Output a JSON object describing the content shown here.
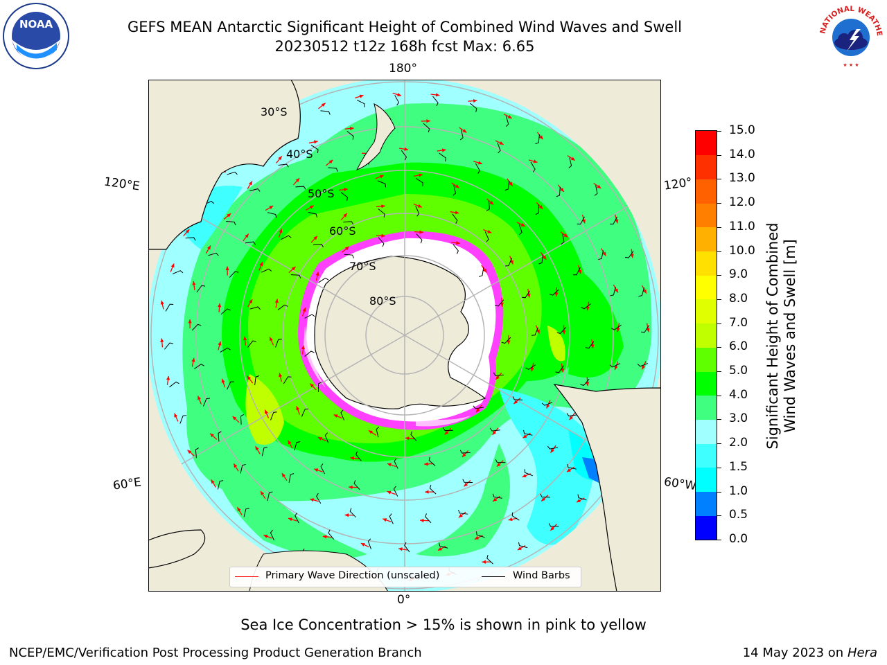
{
  "header": {
    "title_line1": "GEFS MEAN Antarctic Significant Height of Combined Wind Waves and Swell",
    "title_line2": "20230512 t12z 168h fcst   Max: 6.65"
  },
  "logos": {
    "left": "noaa-logo",
    "right": "nws-logo",
    "nws_text": "NATIONAL WEATHER SERVICE"
  },
  "map": {
    "projection": "south-polar-stereographic",
    "longitude_labels": {
      "top": "180°",
      "left_upper": "120°E",
      "right_upper": "120°",
      "left_lower": "60°E",
      "right_lower": "60°W",
      "bottom": "0°"
    },
    "latitude_labels": [
      "30°S",
      "40°S",
      "50°S",
      "60°S",
      "70°S",
      "80°S"
    ],
    "colors": {
      "land": "#efebd9",
      "ice": "#ffffff",
      "sea_ice_edge": "#ff40ff",
      "wave_arrow": "#ff0000",
      "wind_barb": "#000000",
      "graticule": "#b4b4b4"
    }
  },
  "legend": {
    "primary_wave_direction": "Primary Wave Direction (unscaled)",
    "wind_barbs": "Wind Barbs"
  },
  "colorbar": {
    "title_line1": "Significant Height of Combined",
    "title_line2": "Wind Waves and Swell [m]",
    "ticks": [
      "15.0",
      "14.0",
      "13.0",
      "12.0",
      "11.0",
      "10.0",
      "9.0",
      "8.0",
      "7.0",
      "6.0",
      "5.0",
      "4.0",
      "3.0",
      "2.0",
      "1.5",
      "1.0",
      "0.5",
      "0.0"
    ],
    "levels": [
      0,
      0.5,
      1.0,
      1.5,
      2.0,
      3.0,
      4.0,
      5.0,
      6.0,
      7.0,
      8.0,
      9.0,
      10.0,
      11.0,
      12.0,
      13.0,
      14.0,
      15.0
    ],
    "colors": [
      "#0000ff",
      "#0080ff",
      "#00ffff",
      "#40ffff",
      "#a0ffff",
      "#40ff80",
      "#00ff00",
      "#60ff00",
      "#c0ff00",
      "#e0ff00",
      "#ffff00",
      "#ffe000",
      "#ffb000",
      "#ff8000",
      "#ff6000",
      "#ff3000",
      "#ff0000"
    ]
  },
  "footer": {
    "sea_ice_note": "Sea Ice Concentration > 15% is shown in pink to yellow",
    "credit": "NCEP/EMC/Verification Post Processing Product Generation Branch",
    "date_prefix": "14 May 2023 on",
    "date_host": "Hera"
  }
}
